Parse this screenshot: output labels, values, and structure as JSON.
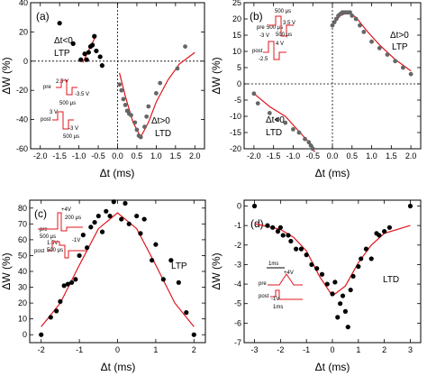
{
  "chart_data": [
    {
      "panel": "(a)",
      "type": "scatter",
      "xlabel": "Δt (ms)",
      "ylabel": "ΔW (%)",
      "xlim": [
        -2.25,
        2.25
      ],
      "ylim": [
        -60,
        40
      ],
      "xticks": [
        "-2.0",
        "-1.5",
        "-1.0",
        "-0.5",
        "0.0",
        "0.5",
        "1.0",
        "1.5",
        "2.0"
      ],
      "yticks": [
        "40",
        "20",
        "0",
        "-20",
        "-40",
        "-60"
      ],
      "xtick_values": [
        -2,
        -1.5,
        -1,
        -0.5,
        0,
        0.5,
        1,
        1.5,
        2
      ],
      "ytick_values": [
        40,
        20,
        0,
        -20,
        -40,
        -60
      ],
      "points": [
        [
          -1.5,
          26
        ],
        [
          -1.15,
          12
        ],
        [
          -0.95,
          1
        ],
        [
          -0.85,
          5
        ],
        [
          -0.8,
          1
        ],
        [
          -0.75,
          6
        ],
        [
          -0.7,
          10
        ],
        [
          -0.65,
          11
        ],
        [
          -0.6,
          17
        ],
        [
          -0.55,
          7
        ],
        [
          -0.45,
          3
        ],
        [
          -0.4,
          -3
        ]
      ],
      "points_gray": [
        [
          0.05,
          -16
        ],
        [
          0.1,
          -20
        ],
        [
          0.15,
          -26
        ],
        [
          0.2,
          -30
        ],
        [
          0.25,
          -34
        ],
        [
          0.3,
          -36
        ],
        [
          0.35,
          -37
        ],
        [
          0.45,
          -42
        ],
        [
          0.5,
          -47
        ],
        [
          0.55,
          -51
        ],
        [
          0.6,
          -52
        ],
        [
          0.7,
          -45
        ],
        [
          0.75,
          -38
        ],
        [
          0.8,
          -31
        ],
        [
          1.0,
          -22
        ],
        [
          1.1,
          -15
        ],
        [
          1.55,
          -5
        ],
        [
          1.75,
          10
        ]
      ],
      "fit_ltp": [
        [
          -0.9,
          -1
        ],
        [
          -0.55,
          18
        ]
      ],
      "fit_ltd": [
        [
          0.05,
          -8
        ],
        [
          0.2,
          -24
        ],
        [
          0.4,
          -42
        ],
        [
          0.6,
          -52
        ],
        [
          0.8,
          -42
        ],
        [
          1.0,
          -28
        ],
        [
          1.3,
          -13
        ],
        [
          1.6,
          -2
        ],
        [
          2.0,
          6
        ]
      ],
      "annotations": {
        "ltp": "Δt<0",
        "ltp2": "LTP",
        "ltd": "Δt>0",
        "ltd2": "LTD"
      },
      "inset": {
        "pre": "pre",
        "post": "post",
        "v1": "2.5 V",
        "v2": "-3.5 V",
        "v3": "3 V",
        "v4": "-3 V",
        "w1": "500 μs",
        "w2": "500 μs"
      }
    },
    {
      "panel": "(b)",
      "type": "scatter",
      "xlabel": "Δt (ms)",
      "ylabel": "ΔW (%)",
      "xlim": [
        -2.25,
        2.25
      ],
      "ylim": [
        -20,
        25
      ],
      "xticks": [
        "-2.0",
        "-1.5",
        "-1.0",
        "-0.5",
        "0.0",
        "0.5",
        "1.0",
        "1.5",
        "2.0"
      ],
      "yticks": [
        "25",
        "20",
        "15",
        "10",
        "5",
        "0",
        "-5",
        "-10",
        "-15",
        "-20"
      ],
      "xtick_values": [
        -2,
        -1.5,
        -1,
        -0.5,
        0,
        0.5,
        1,
        1.5,
        2
      ],
      "ytick_values": [
        25,
        20,
        15,
        10,
        5,
        0,
        -5,
        -10,
        -15,
        -20
      ],
      "points_gray": [
        [
          -2.0,
          -3
        ],
        [
          -1.9,
          -6
        ],
        [
          -1.6,
          -9
        ],
        [
          -1.4,
          -11
        ],
        [
          -1.2,
          -12
        ],
        [
          -1.0,
          -14
        ],
        [
          -0.85,
          -15
        ],
        [
          -0.7,
          -17
        ],
        [
          -0.6,
          -18
        ],
        [
          -0.55,
          -19
        ],
        [
          -0.5,
          -20
        ],
        [
          0.0,
          18
        ],
        [
          0.05,
          19
        ],
        [
          0.1,
          20
        ],
        [
          0.15,
          21
        ],
        [
          0.2,
          21.5
        ],
        [
          0.25,
          22
        ],
        [
          0.3,
          22
        ],
        [
          0.35,
          22
        ],
        [
          0.4,
          22
        ],
        [
          0.45,
          22
        ],
        [
          0.5,
          21
        ],
        [
          0.6,
          20
        ],
        [
          0.7,
          18
        ],
        [
          0.8,
          16
        ],
        [
          1.0,
          13
        ],
        [
          1.2,
          11
        ],
        [
          1.4,
          9
        ],
        [
          1.6,
          7
        ],
        [
          1.8,
          5
        ],
        [
          2.0,
          3
        ]
      ],
      "fit_ltd": [
        [
          -2.0,
          -3
        ],
        [
          -1.6,
          -7
        ],
        [
          -1.2,
          -10
        ],
        [
          -0.9,
          -14
        ],
        [
          -0.6,
          -18
        ],
        [
          -0.45,
          -21
        ]
      ],
      "fit_ltp": [
        [
          0.0,
          18
        ],
        [
          0.2,
          21
        ],
        [
          0.4,
          22
        ],
        [
          0.6,
          20.5
        ],
        [
          0.9,
          16
        ],
        [
          1.2,
          12
        ],
        [
          1.6,
          7.5
        ],
        [
          2.0,
          4
        ]
      ],
      "annotations": {
        "ltp": "Δt>0",
        "ltp2": "LTP",
        "ltd": "Δt<0",
        "ltd2": "LTD"
      },
      "inset": {
        "pre": "pre",
        "post": "post",
        "v1": "3.5 V",
        "v2": "-3 V",
        "v3": "4 V",
        "v4": "-2.5",
        "w1": "500 μs",
        "w2": "500 μs",
        "w3": "500 μs"
      }
    },
    {
      "panel": "(c)",
      "type": "scatter",
      "xlabel": "Δt (ms)",
      "ylabel": "ΔW (%)",
      "xlim": [
        -2.3,
        2.3
      ],
      "ylim": [
        -5,
        85
      ],
      "xticks": [
        "-2",
        "-1",
        "0",
        "1",
        "2"
      ],
      "yticks": [
        "0",
        "10",
        "20",
        "30",
        "40",
        "50",
        "60",
        "70",
        "80"
      ],
      "xtick_values": [
        -2,
        -1,
        0,
        1,
        2
      ],
      "ytick_values": [
        0,
        10,
        20,
        30,
        40,
        50,
        60,
        70,
        80
      ],
      "points": [
        [
          -2.0,
          0
        ],
        [
          -1.75,
          11
        ],
        [
          -1.6,
          15
        ],
        [
          -1.5,
          21
        ],
        [
          -1.4,
          31
        ],
        [
          -1.3,
          32
        ],
        [
          -1.2,
          33
        ],
        [
          -1.1,
          35
        ],
        [
          -1.0,
          50
        ],
        [
          -0.9,
          63
        ],
        [
          -0.8,
          55
        ],
        [
          -0.7,
          68
        ],
        [
          -0.6,
          71
        ],
        [
          -0.5,
          75
        ],
        [
          -0.4,
          65
        ],
        [
          -0.3,
          78
        ],
        [
          -0.2,
          75
        ],
        [
          -0.1,
          84
        ],
        [
          0.1,
          73
        ],
        [
          0.2,
          83
        ],
        [
          0.3,
          70
        ],
        [
          0.5,
          75
        ],
        [
          0.6,
          64
        ],
        [
          0.7,
          73
        ],
        [
          0.9,
          47
        ],
        [
          1.0,
          57
        ],
        [
          1.2,
          35
        ],
        [
          1.4,
          47
        ],
        [
          1.6,
          33
        ],
        [
          1.8,
          14
        ],
        [
          2.0,
          0
        ]
      ],
      "fit": [
        [
          -2.0,
          5
        ],
        [
          -1.5,
          20
        ],
        [
          -1.0,
          44
        ],
        [
          -0.5,
          67
        ],
        [
          0.0,
          77
        ],
        [
          0.5,
          67
        ],
        [
          1.0,
          44
        ],
        [
          1.5,
          20
        ],
        [
          2.0,
          5
        ]
      ],
      "annotations": {
        "ltp": "LTP"
      },
      "inset": {
        "v1": "+4V",
        "w1": "200 μs",
        "pre": "pre",
        "w2": "500 μs",
        "v2": "1.5V",
        "v3": "-1V",
        "post": "post",
        "w3": "500 μs"
      }
    },
    {
      "panel": "(d)",
      "type": "scatter",
      "xlabel": "Δt (ms)",
      "ylabel": "ΔW (%)",
      "xlim": [
        -3.4,
        3.4
      ],
      "ylim": [
        -7,
        0.3
      ],
      "xticks": [
        "-3",
        "-2",
        "-1",
        "0",
        "1",
        "2",
        "3"
      ],
      "yticks": [
        "0",
        "-1",
        "-2",
        "-3",
        "-4",
        "-5",
        "-6",
        "-7"
      ],
      "xtick_values": [
        -3,
        -2,
        -1,
        0,
        1,
        2,
        3
      ],
      "ytick_values": [
        0,
        -1,
        -2,
        -3,
        -4,
        -5,
        -6,
        -7
      ],
      "points": [
        [
          -3.0,
          0
        ],
        [
          -2.5,
          -1.0
        ],
        [
          -2.3,
          -1.1
        ],
        [
          -2.1,
          -1.3
        ],
        [
          -2.0,
          -1.1
        ],
        [
          -1.9,
          -1.5
        ],
        [
          -1.7,
          -1.5
        ],
        [
          -1.6,
          -1.8
        ],
        [
          -1.4,
          -2.2
        ],
        [
          -1.2,
          -2.2
        ],
        [
          -1.0,
          -2.5
        ],
        [
          -0.8,
          -3.0
        ],
        [
          -0.6,
          -3.2
        ],
        [
          -0.4,
          -3.5
        ],
        [
          -0.2,
          -4.0
        ],
        [
          0.0,
          -4.5
        ],
        [
          0.1,
          -3.9
        ],
        [
          0.2,
          -5.7
        ],
        [
          0.3,
          -5.0
        ],
        [
          0.4,
          -4.6
        ],
        [
          0.5,
          -5.4
        ],
        [
          0.6,
          -6.2
        ],
        [
          0.7,
          -4.3
        ],
        [
          0.8,
          -3.6
        ],
        [
          1.0,
          -3.1
        ],
        [
          1.1,
          -2.7
        ],
        [
          1.3,
          -2.2
        ],
        [
          1.5,
          -2.7
        ],
        [
          1.7,
          -1.4
        ],
        [
          1.8,
          -1.5
        ],
        [
          2.0,
          -1.3
        ],
        [
          2.2,
          -1.1
        ],
        [
          3.0,
          0
        ]
      ],
      "fit": [
        [
          -3.0,
          -0.9
        ],
        [
          -2.0,
          -1.2
        ],
        [
          -1.5,
          -1.6
        ],
        [
          -1.0,
          -2.3
        ],
        [
          -0.5,
          -3.6
        ],
        [
          0.0,
          -4.6
        ],
        [
          0.5,
          -4.1
        ],
        [
          1.0,
          -2.9
        ],
        [
          1.5,
          -2.0
        ],
        [
          2.0,
          -1.4
        ],
        [
          3.0,
          -1.0
        ]
      ],
      "annotations": {
        "ltd": "LTD"
      },
      "inset": {
        "w1": "1ms",
        "v1": "+4V",
        "pre": "pre",
        "post": "post",
        "v2": "-1V",
        "w2": "1ms"
      }
    }
  ],
  "colors": {
    "fit": "#e0141c",
    "points": "#000000",
    "points_gray": "#666666"
  }
}
